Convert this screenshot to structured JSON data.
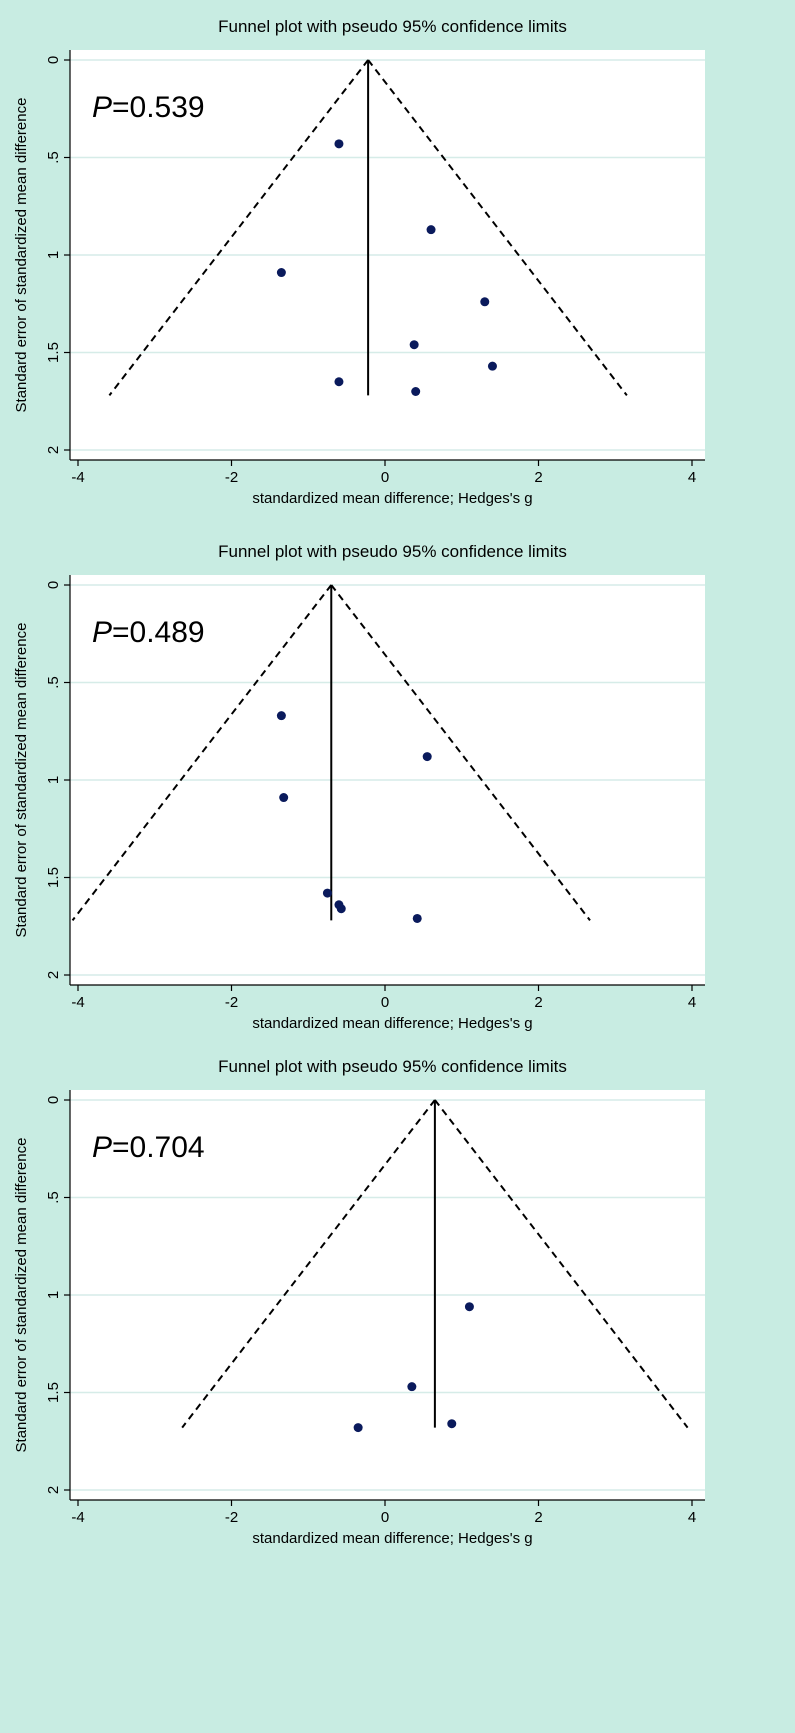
{
  "chart_data": [
    {
      "type": "scatter",
      "title": "Funnel plot with pseudo 95% confidence limits",
      "xlabel": "standardized mean difference; Hedges's g",
      "ylabel": "Standard error of standardized mean difference",
      "annotation_label": "P",
      "annotation_value": "=0.539",
      "xlim": [
        -4,
        4
      ],
      "ylim": [
        0,
        2
      ],
      "y_reversed": true,
      "xticks": [
        "-4",
        "-2",
        "0",
        "2",
        "4"
      ],
      "yticks": [
        "0",
        ".5",
        "1",
        "1.5",
        "2"
      ],
      "grid": "horizontal",
      "pooled_effect": -0.22,
      "funnel_max_se": 1.72,
      "points": [
        {
          "x": -0.6,
          "y": 0.43
        },
        {
          "x": 0.6,
          "y": 0.87
        },
        {
          "x": -1.35,
          "y": 1.09
        },
        {
          "x": 1.3,
          "y": 1.24
        },
        {
          "x": 0.38,
          "y": 1.46
        },
        {
          "x": 1.4,
          "y": 1.57
        },
        {
          "x": -0.6,
          "y": 1.65
        },
        {
          "x": 0.4,
          "y": 1.7
        }
      ]
    },
    {
      "type": "scatter",
      "title": "Funnel plot with pseudo 95% confidence limits",
      "xlabel": "standardized mean difference; Hedges's g",
      "ylabel": "Standard error of standardized mean difference",
      "annotation_label": "P",
      "annotation_value": "=0.489",
      "xlim": [
        -4,
        4
      ],
      "ylim": [
        0,
        2
      ],
      "y_reversed": true,
      "xticks": [
        "-4",
        "-2",
        "0",
        "2",
        "4"
      ],
      "yticks": [
        "0",
        ".5",
        "1",
        "1.5",
        "2"
      ],
      "grid": "horizontal",
      "pooled_effect": -0.7,
      "funnel_max_se": 1.72,
      "points": [
        {
          "x": -1.35,
          "y": 0.67
        },
        {
          "x": 0.55,
          "y": 0.88
        },
        {
          "x": -1.32,
          "y": 1.09
        },
        {
          "x": -0.75,
          "y": 1.58
        },
        {
          "x": -0.6,
          "y": 1.64
        },
        {
          "x": -0.57,
          "y": 1.66
        },
        {
          "x": 0.42,
          "y": 1.71
        }
      ]
    },
    {
      "type": "scatter",
      "title": "Funnel plot with pseudo 95% confidence limits",
      "xlabel": "standardized mean difference; Hedges's g",
      "ylabel": "Standard error of standardized mean difference",
      "annotation_label": "P",
      "annotation_value": "=0.704",
      "xlim": [
        -4,
        4
      ],
      "ylim": [
        0,
        2
      ],
      "y_reversed": true,
      "xticks": [
        "-4",
        "-2",
        "0",
        "2",
        "4"
      ],
      "yticks": [
        "0",
        ".5",
        "1",
        "1.5",
        "2"
      ],
      "grid": "horizontal",
      "pooled_effect": 0.65,
      "funnel_max_se": 1.68,
      "points": [
        {
          "x": 1.1,
          "y": 1.06
        },
        {
          "x": 0.35,
          "y": 1.47
        },
        {
          "x": -0.35,
          "y": 1.68
        },
        {
          "x": 0.87,
          "y": 1.66
        }
      ]
    }
  ]
}
